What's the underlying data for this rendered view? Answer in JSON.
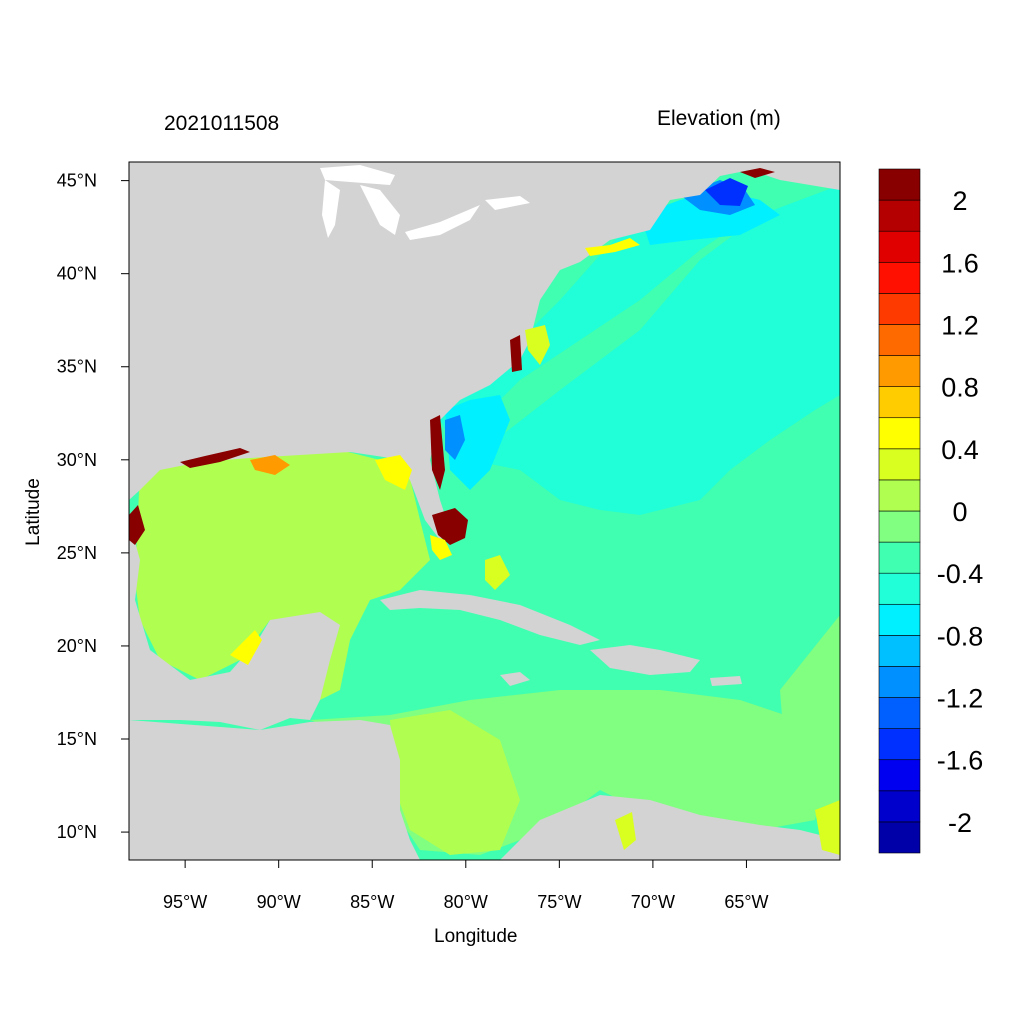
{
  "figure": {
    "title_left": "2021011508",
    "title_right": "Elevation (m)",
    "xlabel": "Longitude",
    "ylabel": "Latitude"
  },
  "map": {
    "lon_range": [
      -98,
      -60
    ],
    "lat_range": [
      8.5,
      46
    ],
    "x_ticks": [
      {
        "value": -95,
        "label": "95°W"
      },
      {
        "value": -90,
        "label": "90°W"
      },
      {
        "value": -85,
        "label": "85°W"
      },
      {
        "value": -80,
        "label": "80°W"
      },
      {
        "value": -75,
        "label": "75°W"
      },
      {
        "value": -70,
        "label": "70°W"
      },
      {
        "value": -65,
        "label": "65°W"
      }
    ],
    "y_ticks": [
      {
        "value": 45,
        "label": "45°N"
      },
      {
        "value": 40,
        "label": "40°N"
      },
      {
        "value": 35,
        "label": "35°N"
      },
      {
        "value": 30,
        "label": "30°N"
      },
      {
        "value": 25,
        "label": "25°N"
      },
      {
        "value": 20,
        "label": "20°N"
      },
      {
        "value": 15,
        "label": "15°N"
      },
      {
        "value": 10,
        "label": "10°N"
      }
    ],
    "land_color": "#d3d3d3"
  },
  "colorbar": {
    "levels": [
      -2.2,
      -2.0,
      -1.8,
      -1.6,
      -1.4,
      -1.2,
      -1.0,
      -0.8,
      -0.6,
      -0.4,
      -0.2,
      0.0,
      0.2,
      0.4,
      0.6,
      0.8,
      1.0,
      1.2,
      1.4,
      1.6,
      1.8,
      2.0,
      2.2
    ],
    "colors": [
      "#0000a8",
      "#0000cc",
      "#0000f0",
      "#0030ff",
      "#0060ff",
      "#0090ff",
      "#00c0ff",
      "#00f0ff",
      "#20ffd8",
      "#40ffb0",
      "#80ff80",
      "#b0ff50",
      "#d8ff20",
      "#ffff00",
      "#ffcc00",
      "#ff9a00",
      "#ff6a00",
      "#ff3a00",
      "#ff1000",
      "#e00000",
      "#b40000",
      "#880000"
    ],
    "labels": [
      {
        "value": 2.0,
        "label": "2"
      },
      {
        "value": 1.6,
        "label": "1.6"
      },
      {
        "value": 1.2,
        "label": "1.2"
      },
      {
        "value": 0.8,
        "label": "0.8"
      },
      {
        "value": 0.4,
        "label": "0.4"
      },
      {
        "value": 0.0,
        "label": "0"
      },
      {
        "value": -0.4,
        "label": "-0.4"
      },
      {
        "value": -0.8,
        "label": "-0.8"
      },
      {
        "value": -1.2,
        "label": "-1.2"
      },
      {
        "value": -1.6,
        "label": "-1.6"
      },
      {
        "value": -2.0,
        "label": "-2"
      }
    ]
  }
}
